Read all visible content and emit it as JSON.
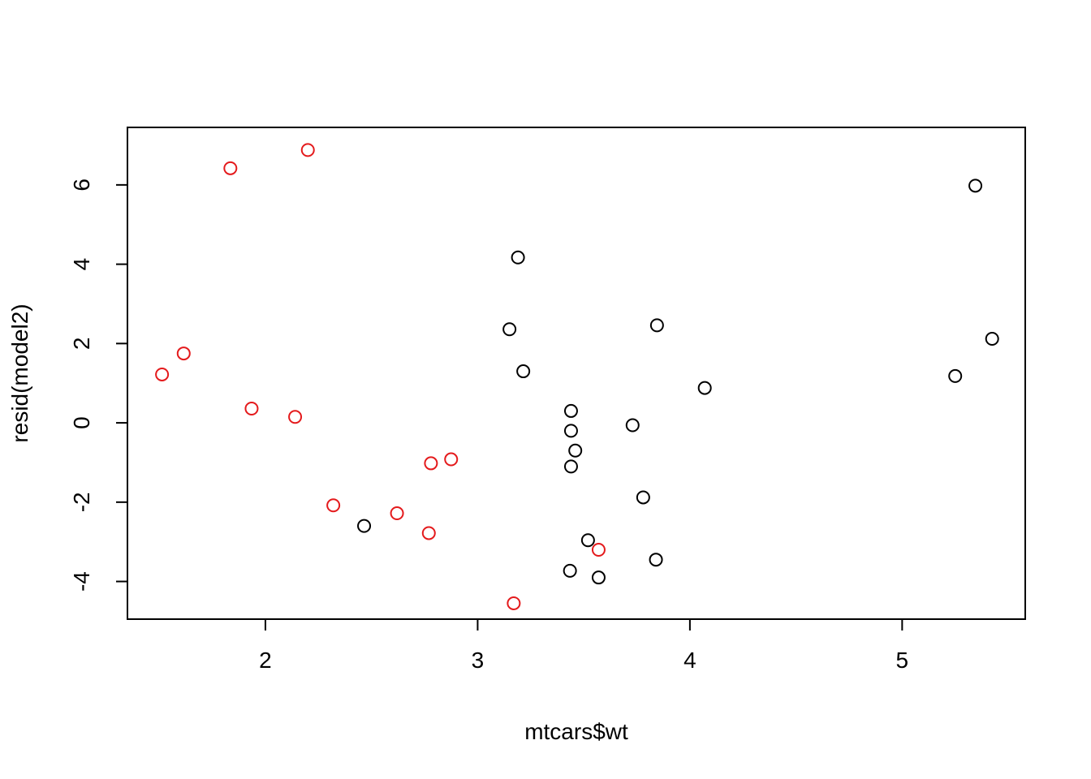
{
  "chart_data": {
    "type": "scatter",
    "title": "",
    "xlabel": "mtcars$wt",
    "ylabel": "resid(model2)",
    "xlim": [
      1.35,
      5.58
    ],
    "ylim": [
      -4.95,
      7.45
    ],
    "x_ticks": [
      2,
      3,
      4,
      5
    ],
    "x_tick_labels": [
      "2",
      "3",
      "4",
      "5"
    ],
    "y_ticks": [
      -4,
      -2,
      0,
      2,
      4,
      6
    ],
    "y_tick_labels": [
      "-4",
      "-2",
      "0",
      "2",
      "4",
      "6"
    ],
    "grid": false,
    "series": [
      {
        "color": "#e41a1c",
        "points": [
          {
            "x": 1.513,
            "y": 1.22
          },
          {
            "x": 1.615,
            "y": 1.75
          },
          {
            "x": 1.835,
            "y": 6.42
          },
          {
            "x": 1.935,
            "y": 0.36
          },
          {
            "x": 2.14,
            "y": 0.15
          },
          {
            "x": 2.2,
            "y": 6.88
          },
          {
            "x": 2.32,
            "y": -2.08
          },
          {
            "x": 2.62,
            "y": -2.28
          },
          {
            "x": 2.77,
            "y": -2.78
          },
          {
            "x": 2.78,
            "y": -1.02
          },
          {
            "x": 2.875,
            "y": -0.92
          },
          {
            "x": 3.17,
            "y": -4.55
          },
          {
            "x": 3.57,
            "y": -3.2
          }
        ]
      },
      {
        "color": "#000000",
        "points": [
          {
            "x": 2.465,
            "y": -2.6
          },
          {
            "x": 3.15,
            "y": 2.36
          },
          {
            "x": 3.19,
            "y": 4.17
          },
          {
            "x": 3.215,
            "y": 1.3
          },
          {
            "x": 3.435,
            "y": -3.73
          },
          {
            "x": 3.44,
            "y": 0.3
          },
          {
            "x": 3.44,
            "y": -0.2
          },
          {
            "x": 3.44,
            "y": -1.1
          },
          {
            "x": 3.46,
            "y": -0.7
          },
          {
            "x": 3.52,
            "y": -2.96
          },
          {
            "x": 3.57,
            "y": -3.9
          },
          {
            "x": 3.73,
            "y": -0.06
          },
          {
            "x": 3.78,
            "y": -1.88
          },
          {
            "x": 3.84,
            "y": -3.45
          },
          {
            "x": 3.845,
            "y": 2.46
          },
          {
            "x": 4.07,
            "y": 0.88
          },
          {
            "x": 5.25,
            "y": 1.18
          },
          {
            "x": 5.345,
            "y": 5.98
          },
          {
            "x": 5.424,
            "y": 2.12
          }
        ]
      }
    ]
  }
}
